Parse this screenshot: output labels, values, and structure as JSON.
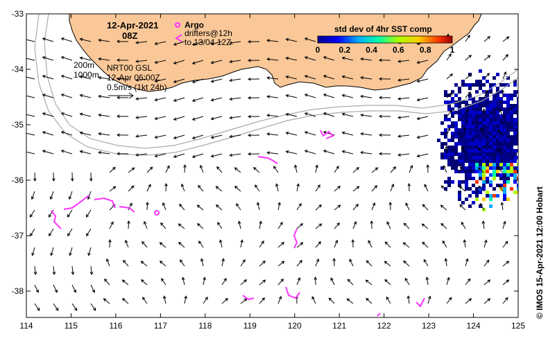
{
  "header": {
    "date": "12-Apr-2021",
    "time": "08Z"
  },
  "legend": {
    "argo_label": "Argo",
    "drifters_label": "drifters@12h",
    "drifters_sub": "to 13/04 12Z",
    "argo_color": "#ff33ff",
    "drifter_color": "#ff33ff"
  },
  "colorbar": {
    "title": "std dev of 4hr SST comp",
    "ticks": [
      "0",
      "0.2",
      "0.4",
      "0.6",
      "0.8",
      "1"
    ]
  },
  "annotations": {
    "isobath_200": "200m",
    "isobath_1000": "1000m",
    "source": "NRT00 GSL",
    "source_time": "12-Apr 06:00Z",
    "scale": "0.5m/s (1kt 24h)"
  },
  "credit": "© IMOS 15-Apr-2021 12:00 Hobart",
  "axes": {
    "lon_ticks": [
      "114",
      "115",
      "116",
      "117",
      "118",
      "119",
      "120",
      "121",
      "122",
      "123",
      "124",
      "125"
    ],
    "lat_ticks": [
      "-33",
      "-34",
      "-35",
      "-36",
      "-37",
      "-38"
    ]
  },
  "colors": {
    "land": "#fac898",
    "isobath": "#aaaaaa",
    "arrow": "#000000",
    "sst_low": "#00008b",
    "sst_high": "#ff0000"
  }
}
